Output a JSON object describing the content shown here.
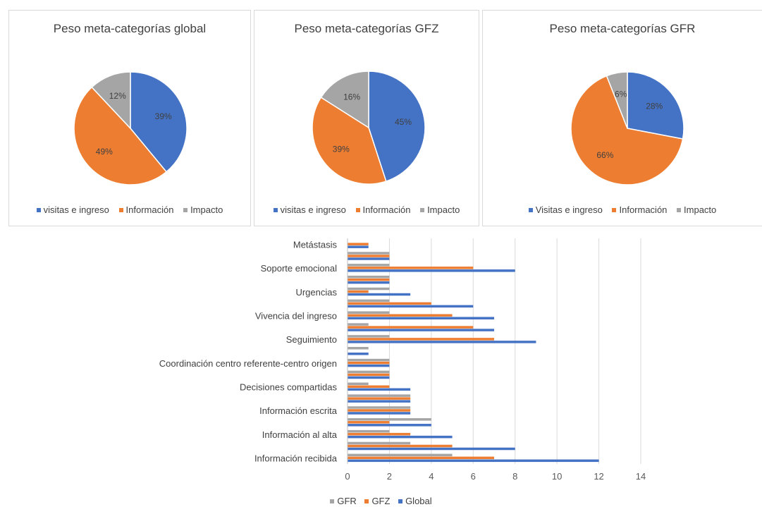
{
  "colors": {
    "blue": "#4472c4",
    "orange": "#ed7d31",
    "gray": "#a5a5a5"
  },
  "chart_data": [
    {
      "type": "pie",
      "title": "Peso meta-categorías global",
      "categories": [
        "visitas e ingreso",
        "Información",
        "Impacto"
      ],
      "values": [
        39,
        49,
        12
      ],
      "labels": [
        "39%",
        "49%",
        "12%"
      ],
      "colors": [
        "#4472c4",
        "#ed7d31",
        "#a5a5a5"
      ],
      "legend_position": "bottom"
    },
    {
      "type": "pie",
      "title": "Peso meta-categorías GFZ",
      "categories": [
        "visitas e ingreso",
        "Información",
        "Impacto"
      ],
      "values": [
        45,
        39,
        16
      ],
      "labels": [
        "45%",
        "39%",
        "16%"
      ],
      "colors": [
        "#4472c4",
        "#ed7d31",
        "#a5a5a5"
      ],
      "legend_position": "bottom"
    },
    {
      "type": "pie",
      "title": "Peso meta-categorías GFR",
      "categories": [
        "Visitas e ingreso",
        "Información",
        "Impacto"
      ],
      "values": [
        28,
        66,
        6
      ],
      "labels": [
        "28%",
        "66%",
        "6%"
      ],
      "colors": [
        "#4472c4",
        "#ed7d31",
        "#a5a5a5"
      ],
      "legend_position": "bottom"
    },
    {
      "type": "bar",
      "orientation": "horizontal",
      "categories": [
        "Información recibida",
        "",
        "Información al alta",
        "",
        "Información escrita",
        "",
        "Decisiones compartidas",
        "",
        "Coordinación centro referente-centro origen",
        "",
        "Seguimiento",
        "",
        "Vivencia del ingreso",
        "",
        "Urgencias",
        "",
        "Soporte emocional",
        "",
        "Metástasis"
      ],
      "series": [
        {
          "name": "Global",
          "color": "#4472c4",
          "values": [
            12,
            8,
            5,
            4,
            3,
            3,
            3,
            2,
            2,
            1,
            9,
            7,
            7,
            6,
            3,
            2,
            8,
            2,
            1
          ]
        },
        {
          "name": "GFZ",
          "color": "#ed7d31",
          "values": [
            7,
            5,
            3,
            2,
            3,
            3,
            2,
            2,
            2,
            0,
            7,
            6,
            5,
            4,
            1,
            2,
            6,
            2,
            1
          ]
        },
        {
          "name": "GFR",
          "color": "#a5a5a5",
          "values": [
            5,
            3,
            2,
            4,
            3,
            3,
            1,
            2,
            2,
            1,
            2,
            1,
            2,
            2,
            2,
            2,
            2,
            2,
            0
          ]
        }
      ],
      "xlim": [
        0,
        14
      ],
      "xticks": [
        0,
        2,
        4,
        6,
        8,
        10,
        12,
        14
      ],
      "grid": true,
      "legend_position": "bottom",
      "legend_order": [
        "GFR",
        "GFZ",
        "Global"
      ]
    }
  ]
}
